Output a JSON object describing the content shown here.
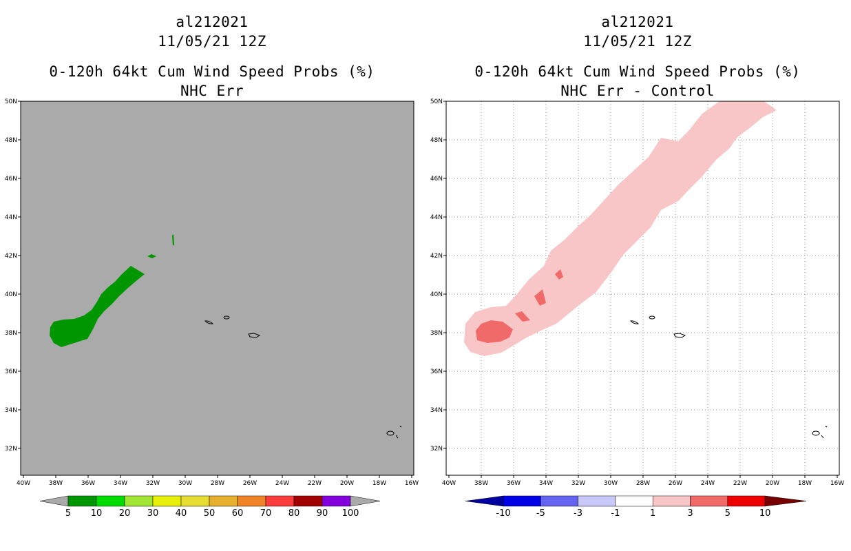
{
  "left_panel": {
    "storm_id": "al212021",
    "datetime": "11/05/21 12Z",
    "product": "0-120h 64kt Cum Wind Speed Probs (%)",
    "subtitle": "NHC Err",
    "background_color": "#aaaaaa",
    "fill_color": "#009600",
    "lat_labels": [
      "50N",
      "48N",
      "46N",
      "44N",
      "42N",
      "40N",
      "38N",
      "36N",
      "34N",
      "32N"
    ],
    "lon_labels": [
      "40W",
      "38W",
      "36W",
      "34W",
      "32W",
      "30W",
      "28W",
      "26W",
      "24W",
      "22W",
      "20W",
      "18W",
      "16W"
    ],
    "colorbar": {
      "labels": [
        "5",
        "10",
        "20",
        "30",
        "40",
        "50",
        "60",
        "70",
        "80",
        "90",
        "100"
      ],
      "colors": [
        "#009600",
        "#00dc00",
        "#a0e632",
        "#e6f00a",
        "#e6dc32",
        "#e6af2d",
        "#f08228",
        "#fa3c3c",
        "#a00000",
        "#8200dc"
      ],
      "end_color": "#aaaaaa"
    }
  },
  "right_panel": {
    "storm_id": "al212021",
    "datetime": "11/05/21 12Z",
    "product": "0-120h 64kt Cum Wind Speed Probs (%)",
    "subtitle": "NHC Err - Control",
    "background_color": "#ffffff",
    "light_fill": "#f8c6c6",
    "mid_fill": "#f06a6a",
    "lat_labels": [
      "50N",
      "48N",
      "46N",
      "44N",
      "42N",
      "40N",
      "38N",
      "36N",
      "34N",
      "32N"
    ],
    "lon_labels": [
      "40W",
      "38W",
      "36W",
      "34W",
      "32W",
      "30W",
      "28W",
      "26W",
      "24W",
      "22W",
      "20W",
      "18W",
      "16W"
    ],
    "colorbar": {
      "labels": [
        "-10",
        "-5",
        "-3",
        "-1",
        "1",
        "3",
        "5",
        "10"
      ],
      "colors": [
        "#0000e6",
        "#6464f0",
        "#c8c8fa",
        "#ffffff",
        "#f8c6c6",
        "#f06a6a",
        "#ee0000"
      ],
      "left_end_color": "#0000a0",
      "right_end_color": "#780000"
    }
  }
}
